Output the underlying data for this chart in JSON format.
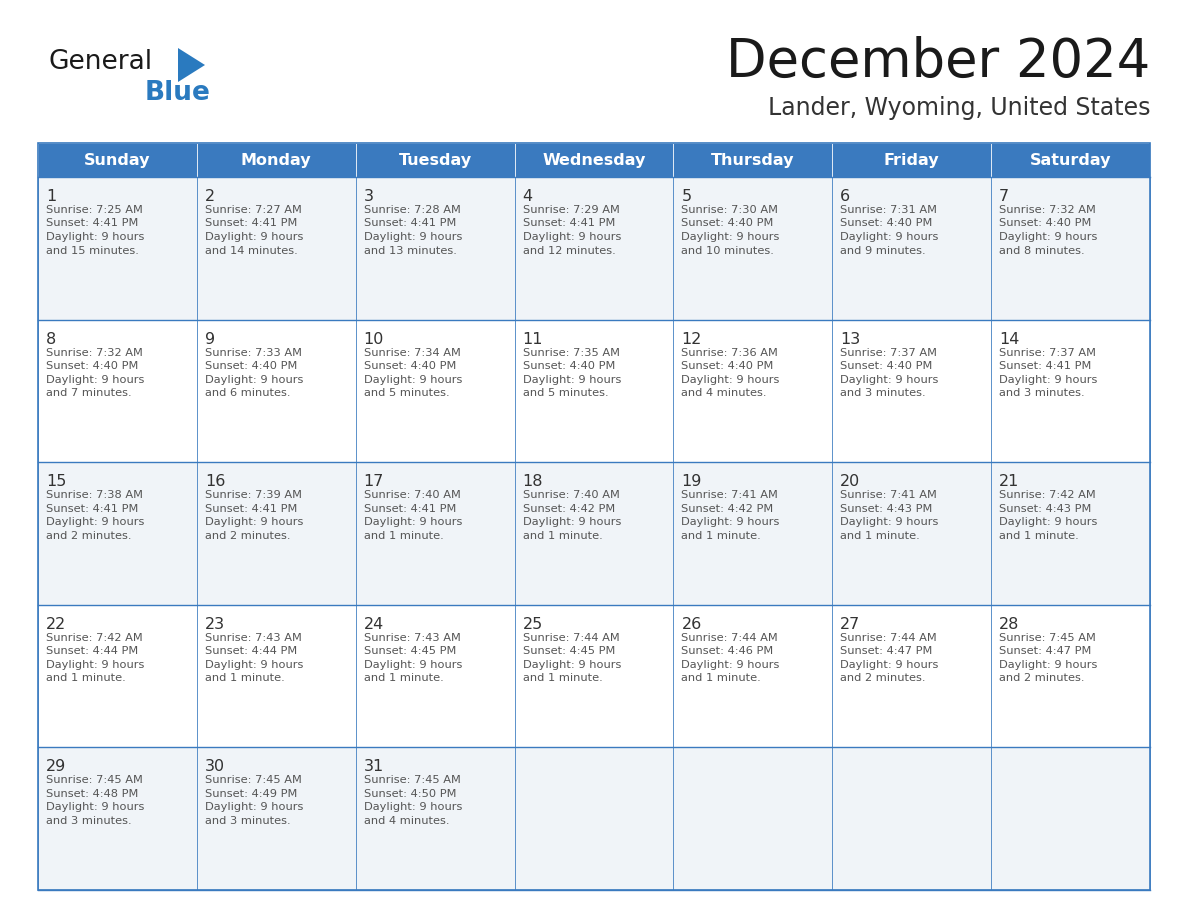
{
  "title": "December 2024",
  "subtitle": "Lander, Wyoming, United States",
  "days_of_week": [
    "Sunday",
    "Monday",
    "Tuesday",
    "Wednesday",
    "Thursday",
    "Friday",
    "Saturday"
  ],
  "header_bg": "#3a7abf",
  "header_text_color": "#ffffff",
  "cell_bg_light": "#f0f4f8",
  "cell_bg_white": "#ffffff",
  "border_color": "#3a7abf",
  "day_num_color": "#333333",
  "text_color": "#555555",
  "title_color": "#1a1a1a",
  "subtitle_color": "#333333",
  "logo_general_color": "#1a1a1a",
  "logo_blue_color": "#2a7abf",
  "calendar": [
    [
      {
        "day": 1,
        "sunrise": "7:25 AM",
        "sunset": "4:41 PM",
        "daylight": "9 hours and 15 minutes."
      },
      {
        "day": 2,
        "sunrise": "7:27 AM",
        "sunset": "4:41 PM",
        "daylight": "9 hours and 14 minutes."
      },
      {
        "day": 3,
        "sunrise": "7:28 AM",
        "sunset": "4:41 PM",
        "daylight": "9 hours and 13 minutes."
      },
      {
        "day": 4,
        "sunrise": "7:29 AM",
        "sunset": "4:41 PM",
        "daylight": "9 hours and 12 minutes."
      },
      {
        "day": 5,
        "sunrise": "7:30 AM",
        "sunset": "4:40 PM",
        "daylight": "9 hours and 10 minutes."
      },
      {
        "day": 6,
        "sunrise": "7:31 AM",
        "sunset": "4:40 PM",
        "daylight": "9 hours and 9 minutes."
      },
      {
        "day": 7,
        "sunrise": "7:32 AM",
        "sunset": "4:40 PM",
        "daylight": "9 hours and 8 minutes."
      }
    ],
    [
      {
        "day": 8,
        "sunrise": "7:32 AM",
        "sunset": "4:40 PM",
        "daylight": "9 hours and 7 minutes."
      },
      {
        "day": 9,
        "sunrise": "7:33 AM",
        "sunset": "4:40 PM",
        "daylight": "9 hours and 6 minutes."
      },
      {
        "day": 10,
        "sunrise": "7:34 AM",
        "sunset": "4:40 PM",
        "daylight": "9 hours and 5 minutes."
      },
      {
        "day": 11,
        "sunrise": "7:35 AM",
        "sunset": "4:40 PM",
        "daylight": "9 hours and 5 minutes."
      },
      {
        "day": 12,
        "sunrise": "7:36 AM",
        "sunset": "4:40 PM",
        "daylight": "9 hours and 4 minutes."
      },
      {
        "day": 13,
        "sunrise": "7:37 AM",
        "sunset": "4:40 PM",
        "daylight": "9 hours and 3 minutes."
      },
      {
        "day": 14,
        "sunrise": "7:37 AM",
        "sunset": "4:41 PM",
        "daylight": "9 hours and 3 minutes."
      }
    ],
    [
      {
        "day": 15,
        "sunrise": "7:38 AM",
        "sunset": "4:41 PM",
        "daylight": "9 hours and 2 minutes."
      },
      {
        "day": 16,
        "sunrise": "7:39 AM",
        "sunset": "4:41 PM",
        "daylight": "9 hours and 2 minutes."
      },
      {
        "day": 17,
        "sunrise": "7:40 AM",
        "sunset": "4:41 PM",
        "daylight": "9 hours and 1 minute."
      },
      {
        "day": 18,
        "sunrise": "7:40 AM",
        "sunset": "4:42 PM",
        "daylight": "9 hours and 1 minute."
      },
      {
        "day": 19,
        "sunrise": "7:41 AM",
        "sunset": "4:42 PM",
        "daylight": "9 hours and 1 minute."
      },
      {
        "day": 20,
        "sunrise": "7:41 AM",
        "sunset": "4:43 PM",
        "daylight": "9 hours and 1 minute."
      },
      {
        "day": 21,
        "sunrise": "7:42 AM",
        "sunset": "4:43 PM",
        "daylight": "9 hours and 1 minute."
      }
    ],
    [
      {
        "day": 22,
        "sunrise": "7:42 AM",
        "sunset": "4:44 PM",
        "daylight": "9 hours and 1 minute."
      },
      {
        "day": 23,
        "sunrise": "7:43 AM",
        "sunset": "4:44 PM",
        "daylight": "9 hours and 1 minute."
      },
      {
        "day": 24,
        "sunrise": "7:43 AM",
        "sunset": "4:45 PM",
        "daylight": "9 hours and 1 minute."
      },
      {
        "day": 25,
        "sunrise": "7:44 AM",
        "sunset": "4:45 PM",
        "daylight": "9 hours and 1 minute."
      },
      {
        "day": 26,
        "sunrise": "7:44 AM",
        "sunset": "4:46 PM",
        "daylight": "9 hours and 1 minute."
      },
      {
        "day": 27,
        "sunrise": "7:44 AM",
        "sunset": "4:47 PM",
        "daylight": "9 hours and 2 minutes."
      },
      {
        "day": 28,
        "sunrise": "7:45 AM",
        "sunset": "4:47 PM",
        "daylight": "9 hours and 2 minutes."
      }
    ],
    [
      {
        "day": 29,
        "sunrise": "7:45 AM",
        "sunset": "4:48 PM",
        "daylight": "9 hours and 3 minutes."
      },
      {
        "day": 30,
        "sunrise": "7:45 AM",
        "sunset": "4:49 PM",
        "daylight": "9 hours and 3 minutes."
      },
      {
        "day": 31,
        "sunrise": "7:45 AM",
        "sunset": "4:50 PM",
        "daylight": "9 hours and 4 minutes."
      },
      null,
      null,
      null,
      null
    ]
  ]
}
